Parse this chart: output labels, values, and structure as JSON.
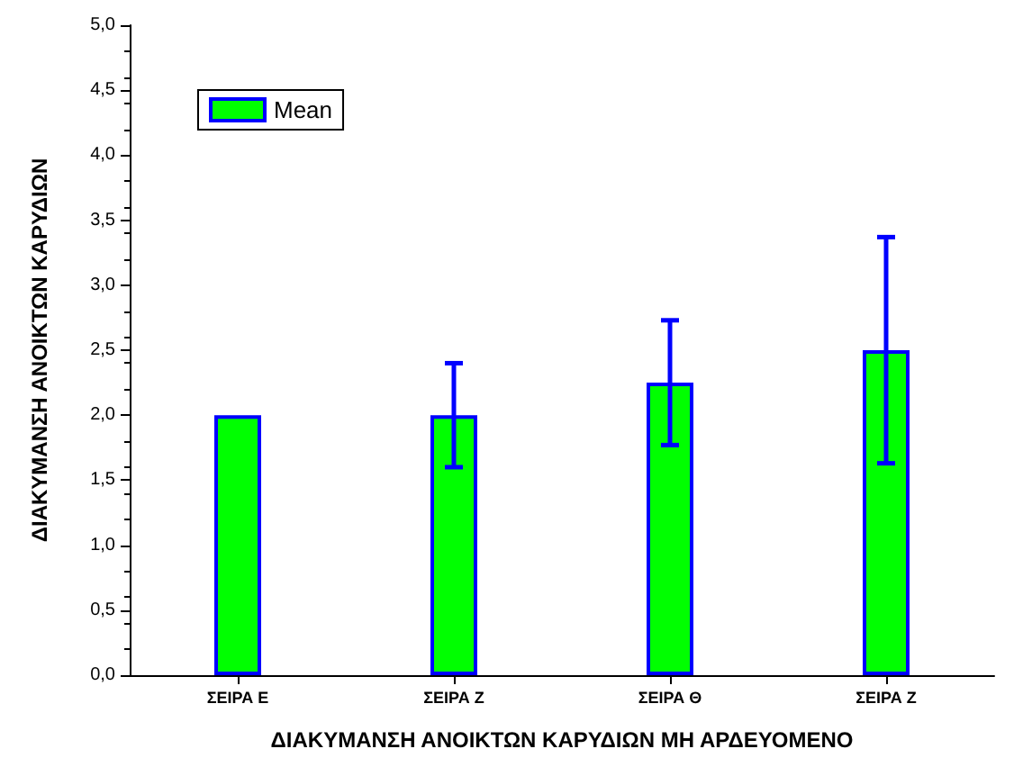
{
  "chart_data": {
    "type": "bar",
    "xlabel": "ΔΙΑΚΥΜΑΝΣΗ ΑΝΟΙΚΤΩΝ ΚΑΡΥΔΙΩΝ ΜΗ ΑΡΔΕΥΟΜΕΝΟ",
    "ylabel": "ΔΙΑΚΥΜΑΝΣΗ ΑΝΟΙΚΤΩΝ ΚΑΡΥΔΙΩΝ",
    "categories": [
      "ΣΕΙΡΑ Ε",
      "ΣΕΙΡΑ Ζ",
      "ΣΕΙΡΑ Θ",
      "ΣΕΙΡΑ Ζ"
    ],
    "series": [
      {
        "name": "Mean",
        "color": "#00ff00",
        "values": [
          2.0,
          2.0,
          2.25,
          2.5
        ],
        "errors": [
          null,
          0.4,
          0.48,
          0.87
        ]
      }
    ],
    "ylim": [
      0,
      5
    ],
    "yticks": [
      {
        "value": 0,
        "label": "0,0"
      },
      {
        "value": 0.5,
        "label": "0,5"
      },
      {
        "value": 1,
        "label": "1,0"
      },
      {
        "value": 1.5,
        "label": "1,5"
      },
      {
        "value": 2,
        "label": "2,0"
      },
      {
        "value": 2.5,
        "label": "2,5"
      },
      {
        "value": 3,
        "label": "3,0"
      },
      {
        "value": 3.5,
        "label": "3,5"
      },
      {
        "value": 4,
        "label": "4,0"
      },
      {
        "value": 4.5,
        "label": "4,5"
      },
      {
        "value": 5,
        "label": "5,0"
      }
    ],
    "grid": false,
    "legend": "top left"
  }
}
